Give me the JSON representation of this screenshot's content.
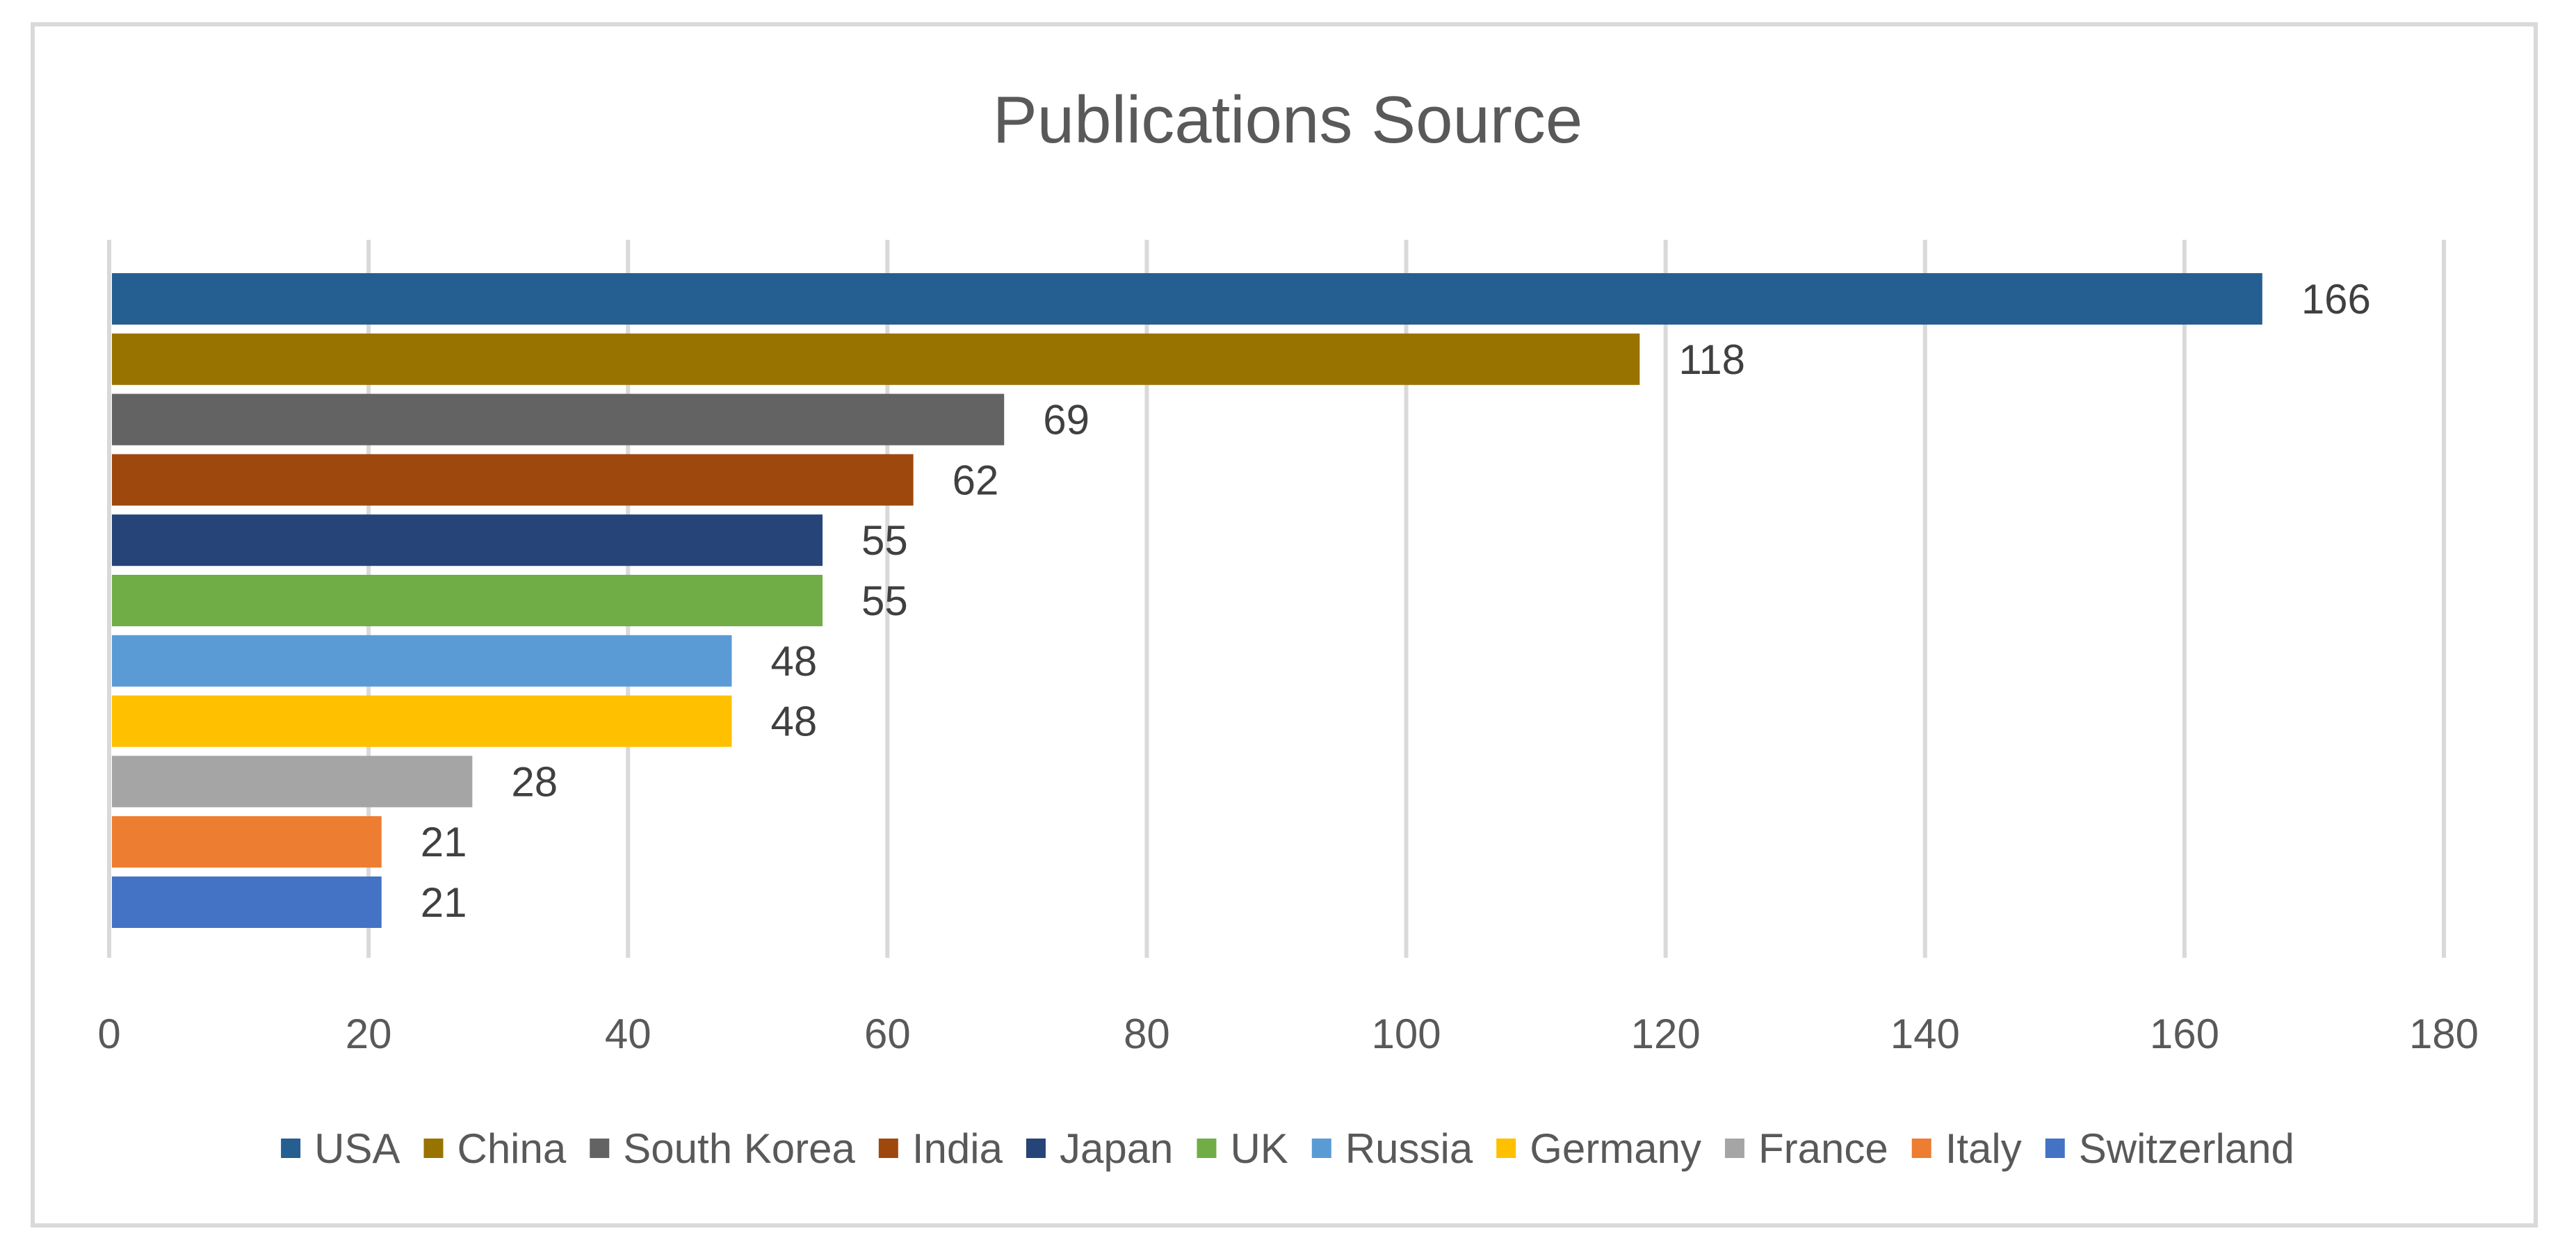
{
  "chart_data": {
    "type": "bar",
    "orientation": "horizontal",
    "title": "Publications Source",
    "xlabel": "",
    "ylabel": "",
    "xlim": [
      0,
      180
    ],
    "x_ticks": [
      "0",
      "20",
      "40",
      "60",
      "80",
      "100",
      "120",
      "140",
      "160",
      "180"
    ],
    "grid": "vertical",
    "legend_position": "bottom",
    "series": [
      {
        "name": "USA",
        "value": 166,
        "color": "#255e91"
      },
      {
        "name": "China",
        "value": 118,
        "color": "#997300"
      },
      {
        "name": "South Korea",
        "value": 69,
        "color": "#636363"
      },
      {
        "name": "India",
        "value": 62,
        "color": "#9e480e"
      },
      {
        "name": "Japan",
        "value": 55,
        "color": "#264478"
      },
      {
        "name": "UK",
        "value": 55,
        "color": "#70ad47"
      },
      {
        "name": "Russia",
        "value": 48,
        "color": "#5b9bd5"
      },
      {
        "name": "Germany",
        "value": 48,
        "color": "#ffc000"
      },
      {
        "name": "France",
        "value": 28,
        "color": "#a5a5a5"
      },
      {
        "name": "Italy",
        "value": 21,
        "color": "#ed7d31"
      },
      {
        "name": "Switzerland",
        "value": 21,
        "color": "#4472c4"
      }
    ]
  }
}
